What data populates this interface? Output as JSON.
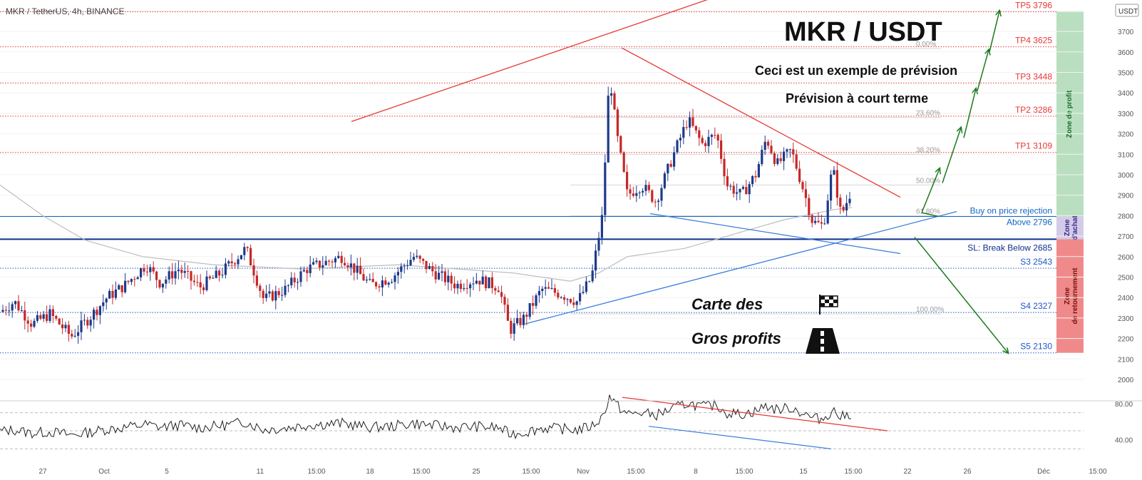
{
  "chart_data": {
    "type": "candlestick",
    "header": "MKR / TetherUS, 4h, BINANCE",
    "title": "MKR / USDT",
    "subtitle_lines": [
      "Ceci est un exemple de prévision",
      "Prévision à court terme"
    ],
    "currency_label": "USDT",
    "price_axis": {
      "ylim": [
        1950,
        3900
      ],
      "ticks": [
        2000,
        2100,
        2200,
        2300,
        2400,
        2500,
        2600,
        2700,
        2800,
        2900,
        3000,
        3100,
        3200,
        3300,
        3400,
        3500,
        3600,
        3700,
        3800
      ]
    },
    "time_axis_labels": [
      "27",
      "Oct",
      "5",
      "11",
      "15:00",
      "18",
      "15:00",
      "25",
      "15:00",
      "Nov",
      "15:00",
      "8",
      "15:00",
      "15",
      "15:00",
      "22",
      "26",
      "Déc",
      "15:00"
    ],
    "levels": [
      {
        "label": "TP5  3796",
        "price": 3796,
        "color": "#e53935",
        "style": "dotted"
      },
      {
        "label": "TP4 3625",
        "price": 3625,
        "color": "#e53935",
        "style": "dotted"
      },
      {
        "label": "TP3 3448",
        "price": 3448,
        "color": "#e53935",
        "style": "dotted"
      },
      {
        "label": "TP2 3286",
        "price": 3286,
        "color": "#e53935",
        "style": "dotted"
      },
      {
        "label": "TP1 3109",
        "price": 3109,
        "color": "#e53935",
        "style": "dotted"
      },
      {
        "label": "Buy on price rejection",
        "label2": "Above 2796",
        "price": 2796,
        "color": "#1565c0",
        "style": "solid"
      },
      {
        "label": "SL: Break Below 2685",
        "price": 2685,
        "color": "#0d2f8c",
        "style": "solid-thick"
      },
      {
        "label": "S3 2543",
        "price": 2543,
        "color": "#1e56c8",
        "style": "dotted"
      },
      {
        "label": "S4 2327",
        "price": 2327,
        "color": "#1e56c8",
        "style": "dotted"
      },
      {
        "label": "S5 2130",
        "price": 2130,
        "color": "#1e56c8",
        "style": "dotted"
      }
    ],
    "fibonacci": [
      {
        "label": "0.00%",
        "price": 3616
      },
      {
        "label": "23.60%",
        "price": 3280
      },
      {
        "label": "38.20%",
        "price": 3100
      },
      {
        "label": "50.00%",
        "price": 2950
      },
      {
        "label": "61.80%",
        "price": 2800
      },
      {
        "label": "100.00%",
        "price": 2320
      }
    ],
    "zones": [
      {
        "label": "Zone de profit",
        "from": 2796,
        "to": 3796,
        "color": "#b9dfc0",
        "text_color": "#1b6e2a"
      },
      {
        "label": "Zone d'achat",
        "from": 2685,
        "to": 2796,
        "color": "#d4cbe9",
        "text_color": "#3a2a8a"
      },
      {
        "label": "Zone de retournement",
        "from": 2130,
        "to": 2685,
        "color": "#f08a8a",
        "text_color": "#7a1010"
      }
    ],
    "annotations": {
      "map_line1": "Carte des",
      "map_line2": "Gros profits"
    },
    "rsi": {
      "ylim": [
        20,
        95
      ],
      "ticks": [
        40.0,
        80.0
      ],
      "tick_labels": [
        "40.00",
        "80.00"
      ],
      "bands": [
        70,
        50,
        30
      ]
    }
  },
  "colors": {
    "bull": "#26a69a",
    "bear": "#ef5350",
    "candle_body_up": "#1e3a8a",
    "candle_body_down": "#c62828",
    "ma": "#bdbdbd",
    "red_line": "#e53935",
    "blue_line": "#3b7ddd",
    "arrow_green": "#1b7a1b"
  }
}
